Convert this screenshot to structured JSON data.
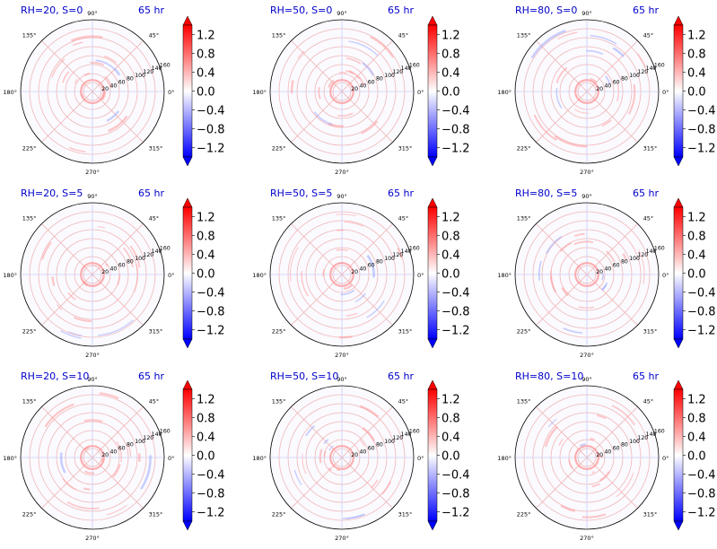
{
  "colors": {
    "title": "#0000cc",
    "cmap_low": "#0000ff",
    "cmap_mid": "#ffffff",
    "cmap_high": "#ff0000",
    "grid_red": "#f1b6b6",
    "grid_blue": "#c9cff5",
    "axis": "#000000"
  },
  "chart_data": {
    "type": "heatmap",
    "projection": "polar",
    "time_label": "65 hr",
    "radial_ticks": [
      "20",
      "40",
      "60",
      "80",
      "100",
      "120",
      "140",
      "160"
    ],
    "angle_ticks": [
      "0°",
      "45°",
      "90°",
      "135°",
      "180°",
      "225°",
      "270°",
      "315°"
    ],
    "colorbar": {
      "range": [
        -1.4,
        1.4
      ],
      "extend": "both",
      "ticks": [
        "1.2",
        "0.8",
        "0.4",
        "0.0",
        "−0.4",
        "−0.8",
        "−1.2"
      ]
    },
    "panels": [
      {
        "title": "RH=20, S=0"
      },
      {
        "title": "RH=50, S=0"
      },
      {
        "title": "RH=80, S=0"
      },
      {
        "title": "RH=20, S=5"
      },
      {
        "title": "RH=50, S=5"
      },
      {
        "title": "RH=80, S=5"
      },
      {
        "title": "RH=20, S=10"
      },
      {
        "title": "RH=50, S=10"
      },
      {
        "title": "RH=80, S=10"
      }
    ]
  }
}
